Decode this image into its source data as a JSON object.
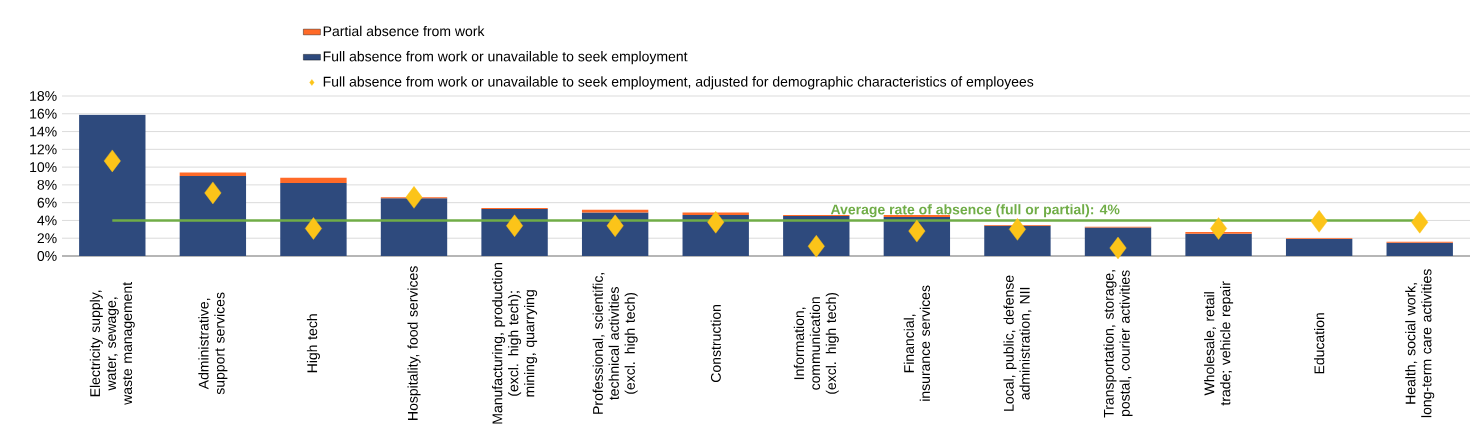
{
  "chart_data": {
    "type": "bar",
    "stacked": true,
    "categories": [
      "Electricity supply, water, sewage, waste management",
      "Administrative, support services",
      "High tech",
      "Hospitality, food services",
      "Manufacturing, production (excl. high tech); mining, quarrying",
      "Professional, scientific, technical activities (excl. high tech)",
      "Construction",
      "Information, communication (excl. high tech)",
      "Financial, insurance services",
      "Local, public, defense administration, NII",
      "Transportation, storage, postal, courier activities",
      "Wholesale, retail trade; vehicle repair",
      "Education",
      "Health, social work, long-term care activities"
    ],
    "series": [
      {
        "name": "Full absence from work or unavailable to seek employment",
        "color": "#2e4a7d",
        "values": [
          15.9,
          9.0,
          8.2,
          6.5,
          5.3,
          4.9,
          4.6,
          4.5,
          4.4,
          3.4,
          3.2,
          2.5,
          1.9,
          1.5
        ]
      },
      {
        "name": "Partial absence from work",
        "color": "#ff6a28",
        "values": [
          0,
          0.4,
          0.6,
          0.1,
          0.1,
          0.3,
          0.3,
          0.1,
          0.2,
          0.1,
          0.1,
          0.2,
          0.1,
          0.1
        ]
      },
      {
        "name": "Full absence from work or unavailable to seek employment, adjusted for demographic characteristics of employees",
        "type": "scatter",
        "marker": "diamond",
        "color": "#fcc419",
        "values": [
          10.7,
          7.1,
          3.1,
          6.6,
          3.4,
          3.4,
          3.8,
          1.1,
          2.8,
          3.0,
          0.9,
          3.1,
          3.9,
          3.8
        ]
      }
    ],
    "ylim": [
      0,
      18
    ],
    "yticks": [
      {
        "value": 0,
        "label": "0%"
      },
      {
        "value": 2,
        "label": "2%"
      },
      {
        "value": 4,
        "label": "4%"
      },
      {
        "value": 6,
        "label": "6%"
      },
      {
        "value": 8,
        "label": "8%"
      },
      {
        "value": 10,
        "label": "10%"
      },
      {
        "value": 12,
        "label": "12%"
      },
      {
        "value": 14,
        "label": "14%"
      },
      {
        "value": 16,
        "label": "16%"
      },
      {
        "value": 18,
        "label": "18%"
      }
    ],
    "grid": "y",
    "legend": "top",
    "ref_lines": [
      {
        "axis": "y",
        "value": 4,
        "label": "Average rate of absence (full or partial): 4%",
        "color": "#70ad47"
      }
    ]
  }
}
